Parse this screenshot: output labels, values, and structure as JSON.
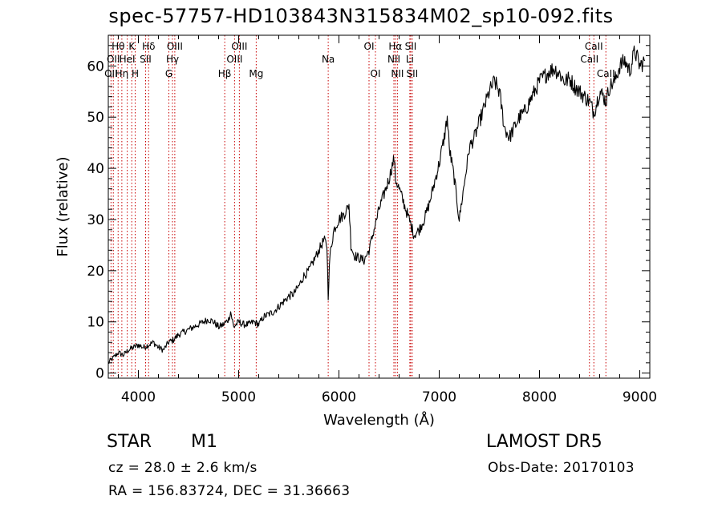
{
  "header": {
    "title": "spec-57757-HD103843N315834M02_sp10-092.fits"
  },
  "footer": {
    "object_class": "STAR",
    "subclass": "M1",
    "survey": "LAMOST DR5",
    "redshift_text": "cz = 28.0 ± 2.6 km/s",
    "obs_date_text": "Obs-Date: 20170103",
    "coords_text": "RA = 156.83724, DEC =  31.36663"
  },
  "chart_data": {
    "type": "line",
    "title": "spec-57757-HD103843N315834M02_sp10-092.fits",
    "xlabel": "Wavelength (Å)",
    "ylabel": "Flux (relative)",
    "xlim": [
      3700,
      9100
    ],
    "ylim": [
      -1,
      66
    ],
    "xticks": [
      4000,
      5000,
      6000,
      7000,
      8000,
      9000
    ],
    "yticks": [
      0,
      10,
      20,
      30,
      40,
      50,
      60
    ],
    "grid": false,
    "line_color": "#000000",
    "marker_color": "#c80000",
    "series": [
      {
        "values": [
          [
            3700,
            2
          ],
          [
            3750,
            3
          ],
          [
            3800,
            4
          ],
          [
            3850,
            3.5
          ],
          [
            3900,
            4.5
          ],
          [
            3950,
            5
          ],
          [
            4000,
            5.5
          ],
          [
            4050,
            5
          ],
          [
            4100,
            5.5
          ],
          [
            4150,
            6
          ],
          [
            4200,
            5
          ],
          [
            4250,
            4.5
          ],
          [
            4300,
            6
          ],
          [
            4350,
            6.5
          ],
          [
            4400,
            7.5
          ],
          [
            4450,
            8
          ],
          [
            4500,
            8.5
          ],
          [
            4550,
            9
          ],
          [
            4600,
            9.5
          ],
          [
            4650,
            10
          ],
          [
            4700,
            10.5
          ],
          [
            4750,
            10
          ],
          [
            4800,
            9
          ],
          [
            4850,
            9.5
          ],
          [
            4900,
            10.5
          ],
          [
            4920,
            12
          ],
          [
            4950,
            9
          ],
          [
            5000,
            10
          ],
          [
            5050,
            9.5
          ],
          [
            5100,
            9.5
          ],
          [
            5150,
            10
          ],
          [
            5200,
            9.5
          ],
          [
            5250,
            11
          ],
          [
            5300,
            11.5
          ],
          [
            5350,
            12
          ],
          [
            5400,
            13
          ],
          [
            5450,
            14
          ],
          [
            5500,
            15
          ],
          [
            5550,
            15.5
          ],
          [
            5600,
            17
          ],
          [
            5650,
            19
          ],
          [
            5700,
            20
          ],
          [
            5750,
            22
          ],
          [
            5800,
            24
          ],
          [
            5850,
            26
          ],
          [
            5880,
            25
          ],
          [
            5893,
            15
          ],
          [
            5910,
            23
          ],
          [
            5950,
            28
          ],
          [
            6000,
            30
          ],
          [
            6050,
            31
          ],
          [
            6080,
            32
          ],
          [
            6100,
            33
          ],
          [
            6120,
            25
          ],
          [
            6150,
            23
          ],
          [
            6200,
            22.5
          ],
          [
            6250,
            22
          ],
          [
            6300,
            24
          ],
          [
            6350,
            28
          ],
          [
            6400,
            32
          ],
          [
            6450,
            35
          ],
          [
            6500,
            38
          ],
          [
            6550,
            42
          ],
          [
            6563,
            38
          ],
          [
            6600,
            36
          ],
          [
            6650,
            33
          ],
          [
            6700,
            30
          ],
          [
            6750,
            27
          ],
          [
            6800,
            28
          ],
          [
            6850,
            30
          ],
          [
            6900,
            33
          ],
          [
            6950,
            37
          ],
          [
            7000,
            41
          ],
          [
            7050,
            46
          ],
          [
            7080,
            50
          ],
          [
            7100,
            44
          ],
          [
            7150,
            38
          ],
          [
            7200,
            30
          ],
          [
            7250,
            37
          ],
          [
            7300,
            44
          ],
          [
            7350,
            46
          ],
          [
            7400,
            49
          ],
          [
            7450,
            52
          ],
          [
            7500,
            55
          ],
          [
            7550,
            57
          ],
          [
            7600,
            55
          ],
          [
            7650,
            48
          ],
          [
            7700,
            46
          ],
          [
            7750,
            48
          ],
          [
            7800,
            50
          ],
          [
            7850,
            51
          ],
          [
            7900,
            53
          ],
          [
            7950,
            55
          ],
          [
            8000,
            57
          ],
          [
            8050,
            58
          ],
          [
            8100,
            59
          ],
          [
            8150,
            59.5
          ],
          [
            8200,
            58.5
          ],
          [
            8250,
            57
          ],
          [
            8300,
            57.5
          ],
          [
            8350,
            56
          ],
          [
            8400,
            55
          ],
          [
            8450,
            54
          ],
          [
            8500,
            53
          ],
          [
            8540,
            51
          ],
          [
            8560,
            52
          ],
          [
            8600,
            55
          ],
          [
            8640,
            54
          ],
          [
            8662,
            53
          ],
          [
            8700,
            56
          ],
          [
            8750,
            57
          ],
          [
            8800,
            60
          ],
          [
            8850,
            61
          ],
          [
            8900,
            59
          ],
          [
            8950,
            63
          ],
          [
            9000,
            60
          ],
          [
            9050,
            61
          ]
        ]
      }
    ],
    "line_markers": [
      {
        "wavelength": 3727,
        "label": "OII",
        "row": 3
      },
      {
        "wavelength": 3750,
        "label": "OII",
        "row": 2
      },
      {
        "wavelength": 3798,
        "label": "Hθ",
        "row": 1
      },
      {
        "wavelength": 3835,
        "label": "Hη",
        "row": 3
      },
      {
        "wavelength": 3889,
        "label": "HeI",
        "row": 2
      },
      {
        "wavelength": 3934,
        "label": "K",
        "row": 1
      },
      {
        "wavelength": 3968,
        "label": "H",
        "row": 3
      },
      {
        "wavelength": 4072,
        "label": "SII",
        "row": 2
      },
      {
        "wavelength": 4102,
        "label": "Hδ",
        "row": 1
      },
      {
        "wavelength": 4304,
        "label": "G",
        "row": 3
      },
      {
        "wavelength": 4340,
        "label": "Hγ",
        "row": 2
      },
      {
        "wavelength": 4363,
        "label": "OIII",
        "row": 1
      },
      {
        "wavelength": 4861,
        "label": "Hβ",
        "row": 3
      },
      {
        "wavelength": 4959,
        "label": "OIII",
        "row": 2
      },
      {
        "wavelength": 5007,
        "label": "OIII",
        "row": 1
      },
      {
        "wavelength": 5175,
        "label": "Mg",
        "row": 3
      },
      {
        "wavelength": 5893,
        "label": "Na",
        "row": 2
      },
      {
        "wavelength": 6300,
        "label": "OI",
        "row": 1
      },
      {
        "wavelength": 6364,
        "label": "OI",
        "row": 3
      },
      {
        "wavelength": 6548,
        "label": "NII",
        "row": 2
      },
      {
        "wavelength": 6563,
        "label": "Hα",
        "row": 1
      },
      {
        "wavelength": 6583,
        "label": "NII",
        "row": 3
      },
      {
        "wavelength": 6707,
        "label": "Li",
        "row": 2
      },
      {
        "wavelength": 6716,
        "label": "SII",
        "row": 1
      },
      {
        "wavelength": 6731,
        "label": "SII",
        "row": 3
      },
      {
        "wavelength": 8498,
        "label": "CaII",
        "row": 2
      },
      {
        "wavelength": 8542,
        "label": "CaII",
        "row": 1
      },
      {
        "wavelength": 8662,
        "label": "CaII",
        "row": 3
      }
    ]
  }
}
